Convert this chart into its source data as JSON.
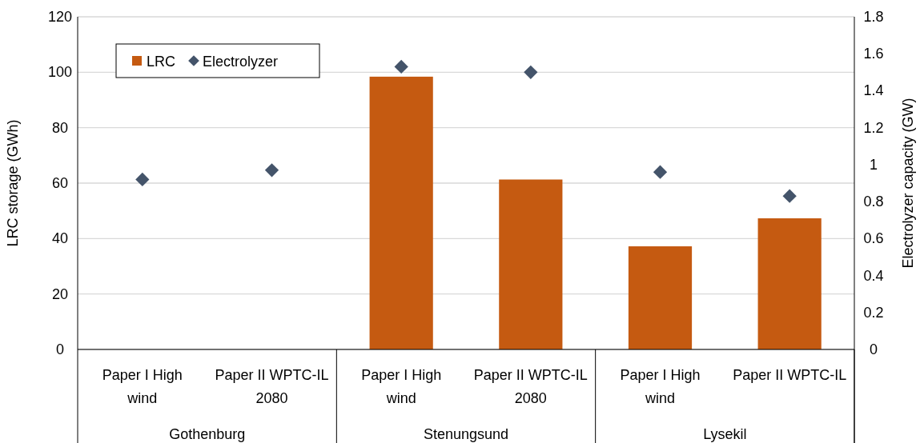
{
  "chart_data": {
    "type": "bar",
    "ylabel": "LRC storage (GWh)",
    "y2label": "Electrolyzer capacity (GW)",
    "categories": [
      "Paper I High wind",
      "Paper II WPTC-IL 2080",
      "Paper I High wind",
      "Paper II WPTC-IL 2080",
      "Paper I High wind",
      "Paper II WPTC-IL"
    ],
    "series": [
      {
        "name": "LRC",
        "color": "#c55a11",
        "values": [
          null,
          null,
          98.4,
          61.3,
          37.2,
          47.3
        ]
      },
      {
        "name": "Electrolyzer",
        "type": "scatter",
        "axis": "y2",
        "marker": "diamond",
        "color": "#44546a",
        "values": [
          0.92,
          0.97,
          1.53,
          1.5,
          0.96,
          0.83
        ]
      }
    ],
    "ylim": [
      0,
      120
    ],
    "yticks": [
      0,
      20,
      40,
      60,
      80,
      100,
      120
    ],
    "y2lim": [
      0,
      1.8
    ],
    "y2ticks": [
      0,
      0.2,
      0.4,
      0.6,
      0.8,
      1,
      1.2,
      1.4,
      1.6,
      1.8
    ],
    "grid": "y",
    "legend": "top left",
    "annotations": [
      "Gothenburg",
      "Stenungsund",
      "Lysekil"
    ]
  }
}
